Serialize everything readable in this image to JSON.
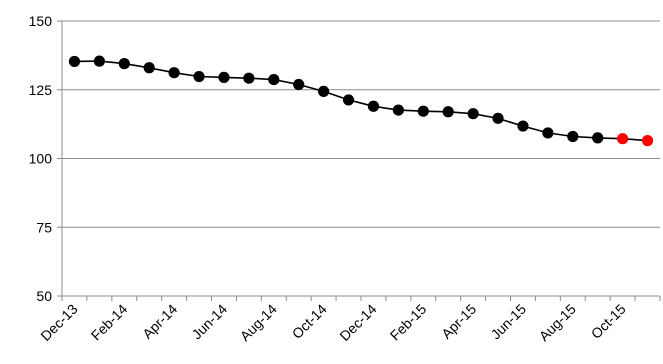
{
  "chart_data": {
    "type": "line",
    "title": "",
    "xlabel": "",
    "ylabel": "",
    "ylim": [
      50,
      150
    ],
    "y_ticks": [
      50,
      75,
      100,
      125,
      150
    ],
    "grid": {
      "horizontal": true,
      "vertical": false
    },
    "legend": "none",
    "x_tick_labels": [
      "Dec-13",
      "Feb-14",
      "Apr-14",
      "Jun-14",
      "Aug-14",
      "Oct-14",
      "Dec-14",
      "Feb-15",
      "Apr-15",
      "Jun-15",
      "Aug-15",
      "Oct-15"
    ],
    "categories": [
      "Dec-13",
      "Jan-14",
      "Feb-14",
      "Mar-14",
      "Apr-14",
      "May-14",
      "Jun-14",
      "Jul-14",
      "Aug-14",
      "Sep-14",
      "Oct-14",
      "Nov-14",
      "Dec-14",
      "Jan-15",
      "Feb-15",
      "Mar-15",
      "Apr-15",
      "May-15",
      "Jun-15",
      "Jul-15",
      "Aug-15",
      "Sep-15",
      "Oct-15",
      "Nov-15"
    ],
    "series": [
      {
        "values": [
          135.3,
          135.4,
          134.5,
          133.0,
          131.2,
          129.8,
          129.5,
          129.2,
          128.7,
          126.9,
          124.4,
          121.3,
          119.0,
          117.6,
          117.2,
          117.0,
          116.3,
          114.6,
          111.8,
          109.3,
          108.0,
          107.5,
          107.2,
          106.5
        ],
        "point_colors": [
          "#000000",
          "#000000",
          "#000000",
          "#000000",
          "#000000",
          "#000000",
          "#000000",
          "#000000",
          "#000000",
          "#000000",
          "#000000",
          "#000000",
          "#000000",
          "#000000",
          "#000000",
          "#000000",
          "#000000",
          "#000000",
          "#000000",
          "#000000",
          "#000000",
          "#000000",
          "#ff0000",
          "#ff0000"
        ]
      }
    ],
    "colors": {
      "line": "#000000",
      "grid": "#8c8c8c",
      "axis": "#8c8c8c",
      "highlight": "#ff0000"
    }
  }
}
